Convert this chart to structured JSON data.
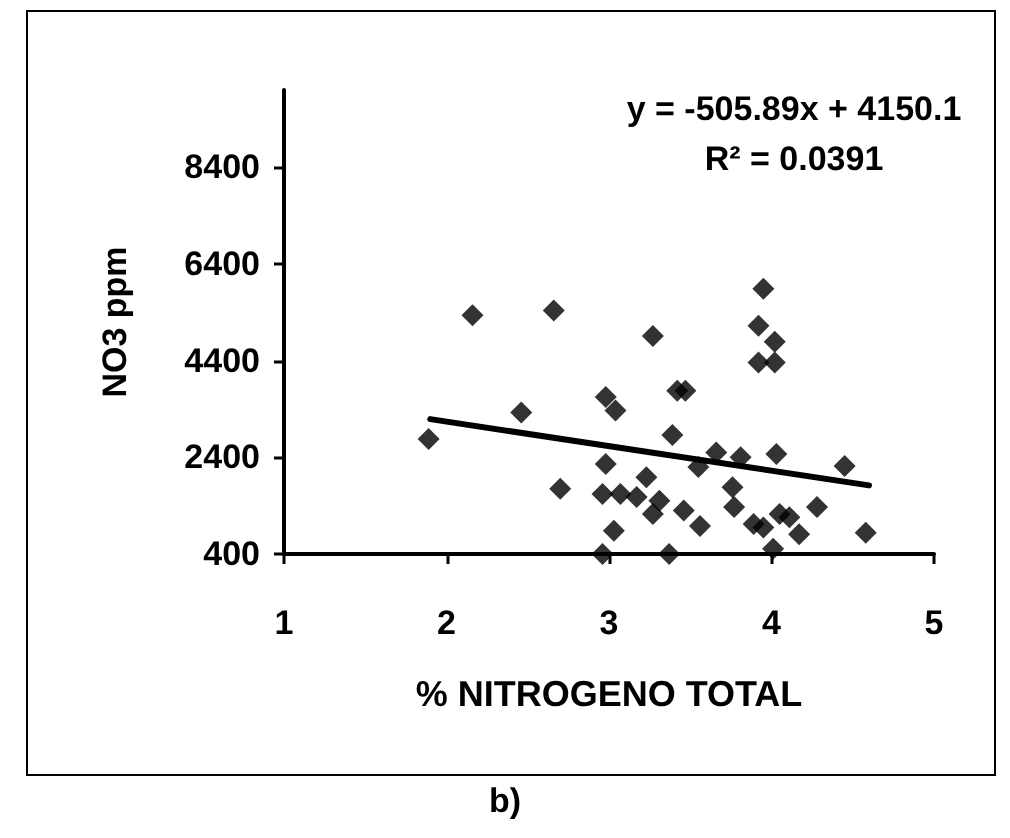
{
  "chart_data": {
    "type": "scatter",
    "xlabel": "% NITROGENO TOTAL",
    "ylabel": "NO3 ppm",
    "annotations": [
      "y = -505.89x + 4150.1",
      "R² = 0.0391",
      "b)"
    ],
    "xlim": [
      1,
      5
    ],
    "xticks": [
      1,
      2,
      3,
      4,
      5
    ],
    "ylim": [
      400,
      10000
    ],
    "yticks": [
      400,
      2400,
      4400,
      6400,
      8400
    ],
    "grid": false,
    "marker": "diamond",
    "series": [
      {
        "type": "scatter",
        "color": "#000000",
        "x": [
          1.89,
          2.16,
          2.46,
          2.66,
          2.7,
          2.96,
          2.96,
          2.98,
          3.04,
          2.98,
          3.03,
          3.07,
          3.17,
          3.23,
          3.27,
          3.31,
          3.27,
          3.37,
          3.39,
          3.42,
          3.47,
          3.46,
          3.55,
          3.56,
          3.66,
          3.76,
          3.77,
          3.81,
          3.89,
          3.95,
          3.92,
          3.95,
          4.02,
          3.92,
          4.02,
          4.03,
          4.01,
          4.05,
          4.11,
          4.17,
          4.28,
          4.45,
          4.58
        ],
        "values": [
          2780,
          5340,
          3330,
          5440,
          1750,
          1640,
          400,
          3650,
          3370,
          2260,
          880,
          1640,
          1580,
          1990,
          1230,
          1500,
          4910,
          400,
          2860,
          3780,
          3780,
          1300,
          2200,
          980,
          2500,
          1780,
          1370,
          2400,
          1020,
          950,
          5120,
          5890,
          4790,
          4360,
          4360,
          2470,
          510,
          1230,
          1160,
          810,
          1370,
          2220,
          840
        ]
      },
      {
        "type": "line",
        "color": "#000000",
        "x": [
          1.9,
          4.6
        ],
        "values": [
          3190,
          1820
        ],
        "marker": "none",
        "line_style": "solid"
      }
    ]
  }
}
